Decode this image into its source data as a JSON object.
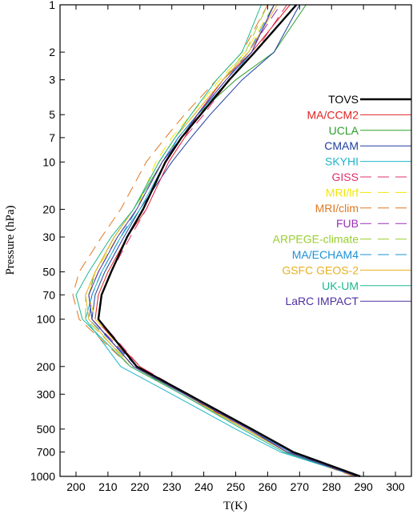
{
  "chart_data": {
    "type": "line",
    "xlabel": "T(K)",
    "ylabel": "Pressure (hPa)",
    "xlim": [
      195,
      305
    ],
    "ylim": [
      1000,
      1
    ],
    "y_scale": "log",
    "grid": false,
    "legend_position": "right",
    "x_ticks": [
      200,
      210,
      220,
      230,
      240,
      250,
      260,
      270,
      280,
      290,
      300
    ],
    "y_ticks": [
      1000,
      700,
      500,
      300,
      200,
      100,
      70,
      50,
      30,
      20,
      10,
      7,
      5,
      3,
      2,
      1
    ],
    "x_tick_labels": [
      "200",
      "210",
      "220",
      "230",
      "240",
      "250",
      "260",
      "270",
      "280",
      "290",
      "300"
    ],
    "y_tick_labels": [
      "1000",
      "700",
      "500",
      "300",
      "200",
      "100",
      "70",
      "50",
      "30",
      "20",
      "10",
      "7",
      "5",
      "3",
      "2",
      "1"
    ],
    "pressure_levels": [
      1000,
      700,
      500,
      300,
      200,
      100,
      70,
      50,
      30,
      20,
      10,
      7,
      5,
      3,
      2,
      1
    ],
    "series": [
      {
        "name": "TOVS",
        "color": "#000000",
        "dash": "solid",
        "width": 2.4,
        "values": [
          289,
          268,
          255,
          235,
          219,
          207,
          208,
          211,
          216,
          221,
          228,
          233,
          239,
          248,
          256,
          269
        ]
      },
      {
        "name": "MA/CCM2",
        "color": "#e02424",
        "dash": "solid",
        "width": 1,
        "values": [
          288,
          266,
          253,
          234,
          220,
          206,
          207,
          210,
          216,
          222,
          229,
          234,
          238,
          246,
          255,
          267
        ]
      },
      {
        "name": "UCLA",
        "color": "#2ca02c",
        "dash": "solid",
        "width": 1,
        "values": [
          288,
          266,
          253,
          233,
          218,
          205,
          204,
          206,
          212,
          218,
          227,
          232,
          238,
          250,
          262,
          272
        ]
      },
      {
        "name": "CMAM",
        "color": "#1f3f9f",
        "dash": "solid",
        "width": 1,
        "values": [
          288,
          267,
          254,
          234,
          218,
          205,
          206,
          209,
          215,
          220,
          230,
          236,
          242,
          252,
          262,
          270
        ]
      },
      {
        "name": "SKYHI",
        "color": "#1fb5c8",
        "dash": "solid",
        "width": 1,
        "values": [
          288,
          264,
          250,
          230,
          214,
          203,
          205,
          208,
          214,
          220,
          228,
          232,
          238,
          248,
          255,
          262
        ]
      },
      {
        "name": "GISS",
        "color": "#e0306a",
        "dash": "long-dash",
        "width": 1,
        "values": [
          288,
          267,
          254,
          235,
          220,
          207,
          208,
          211,
          217,
          222,
          229,
          234,
          240,
          248,
          256,
          266
        ]
      },
      {
        "name": "MRI/lrf",
        "color": "#f2e60a",
        "dash": "long-dash",
        "width": 1,
        "values": [
          288,
          266,
          253,
          234,
          219,
          206,
          204,
          206,
          213,
          219,
          225,
          230,
          236,
          245,
          253,
          262
        ]
      },
      {
        "name": "MRI/clim",
        "color": "#e07820",
        "dash": "long-dash",
        "width": 1,
        "values": [
          287,
          266,
          253,
          233,
          217,
          201,
          199,
          201,
          208,
          214,
          222,
          228,
          234,
          244,
          252,
          260
        ]
      },
      {
        "name": "FUB",
        "color": "#9b30b8",
        "dash": "long-dash",
        "width": 1,
        "values": [
          288,
          267,
          254,
          235,
          219,
          205,
          204,
          207,
          213,
          219,
          227,
          232,
          238,
          246,
          254,
          264
        ]
      },
      {
        "name": "ARPEGE-climate",
        "color": "#9acd32",
        "dash": "long-dash",
        "width": 1,
        "values": [
          288,
          266,
          253,
          233,
          218,
          203,
          203,
          206,
          212,
          218,
          226,
          231,
          237,
          246,
          253,
          260
        ]
      },
      {
        "name": "MA/ECHAM4",
        "color": "#1e90d6",
        "dash": "long-dash",
        "width": 1,
        "values": [
          288,
          267,
          254,
          234,
          219,
          204,
          205,
          208,
          214,
          219,
          227,
          232,
          238,
          247,
          254,
          262
        ]
      },
      {
        "name": "GSFC GEOS-2",
        "color": "#e8b020",
        "dash": "solid",
        "width": 1,
        "values": [
          288,
          266,
          253,
          233,
          217,
          204,
          203,
          206,
          212,
          218,
          226,
          231,
          237,
          246,
          254,
          263
        ]
      },
      {
        "name": "UK-UM",
        "color": "#20b890",
        "dash": "solid",
        "width": 1,
        "values": [
          288,
          265,
          252,
          233,
          217,
          202,
          200,
          204,
          211,
          218,
          226,
          231,
          236,
          244,
          252,
          258
        ]
      },
      {
        "name": "LaRC IMPACT",
        "color": "#5030a0",
        "dash": "solid",
        "width": 1,
        "values": [
          288,
          266,
          254,
          234,
          218,
          205,
          204,
          207,
          213,
          219,
          227,
          233,
          238,
          247,
          255,
          262
        ]
      }
    ]
  }
}
